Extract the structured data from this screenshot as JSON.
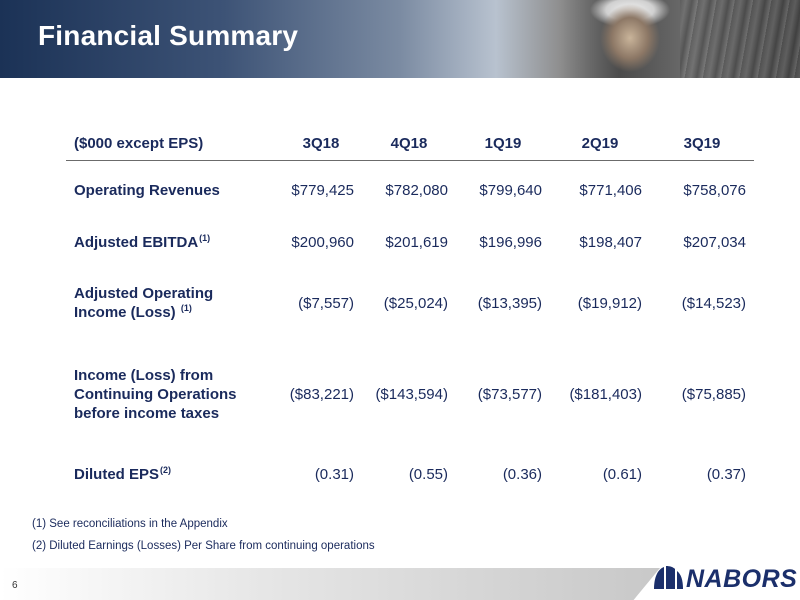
{
  "slide": {
    "title": "Financial Summary",
    "page_number": "6"
  },
  "table": {
    "header": {
      "label": "($000 except EPS)",
      "columns": [
        "3Q18",
        "4Q18",
        "1Q19",
        "2Q19",
        "3Q19"
      ]
    },
    "rows": [
      {
        "label_lines": [
          "Operating Revenues"
        ],
        "sup": "",
        "values": [
          "$779,425",
          "$782,080",
          "$799,640",
          "$771,406",
          "$758,076"
        ]
      },
      {
        "label_lines": [
          "Adjusted EBITDA"
        ],
        "sup": "(1)",
        "values": [
          "$200,960",
          "$201,619",
          "$196,996",
          "$198,407",
          "$207,034"
        ]
      },
      {
        "label_lines": [
          "Adjusted Operating",
          "Income (Loss)"
        ],
        "sup": "(1)",
        "values": [
          "($7,557)",
          "($25,024)",
          "($13,395)",
          "($19,912)",
          "($14,523)"
        ]
      },
      {
        "label_lines": [
          "Income (Loss) from",
          "Continuing Operations",
          "before income taxes"
        ],
        "sup": "",
        "values": [
          "($83,221)",
          "($143,594)",
          "($73,577)",
          "($181,403)",
          "($75,885)"
        ]
      },
      {
        "label_lines": [
          "Diluted EPS"
        ],
        "sup": "(2)",
        "values": [
          "(0.31)",
          "(0.55)",
          "(0.36)",
          "(0.61)",
          "(0.37)"
        ]
      }
    ]
  },
  "footnotes": [
    "(1) See reconciliations in the Appendix",
    "(2) Diluted Earnings (Losses) Per Share from continuing operations"
  ],
  "logo": {
    "text": "NABORS",
    "color": "#1b2f6b"
  },
  "colors": {
    "header_dark": "#1b3256",
    "text": "#1a2a5c"
  }
}
